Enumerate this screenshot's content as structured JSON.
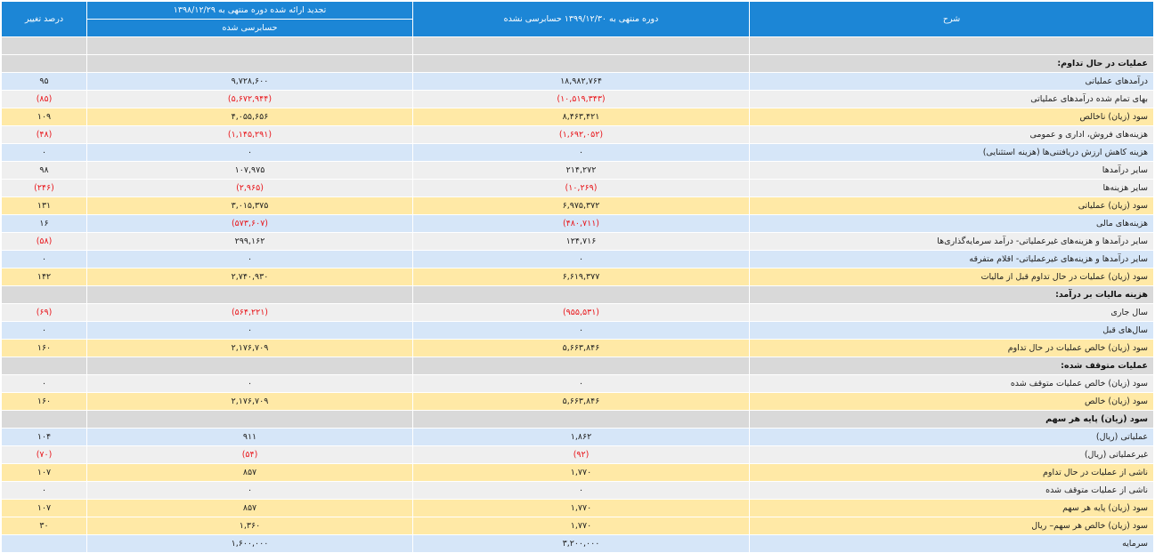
{
  "header": {
    "col_desc": "شرح",
    "col_current": "دوره منتهی به ۱۳۹۹/۱۲/۳۰ حسابرسی نشده",
    "col_previous": "تجدید ارائه شده دوره منتهی به ۱۳۹۸/۱۲/۲۹",
    "col_previous_sub": "حسابرسی شده",
    "col_pct": "درصد تغییر"
  },
  "rows": [
    {
      "type": "section",
      "desc": "",
      "cur": "",
      "prev": "",
      "pct": ""
    },
    {
      "type": "section",
      "desc": "عملیات در حال تداوم:",
      "cur": "",
      "prev": "",
      "pct": ""
    },
    {
      "type": "blue",
      "desc": "درآمدهای عملیاتی",
      "cur": "۱۸,۹۸۲,۷۶۴",
      "prev": "۹,۷۲۸,۶۰۰",
      "pct": "۹۵"
    },
    {
      "type": "gray",
      "desc": "بهای تمام شده درآمدهای عملیاتی",
      "cur": "(۱۰,۵۱۹,۳۴۳)",
      "prev": "(۵,۶۷۲,۹۴۴)",
      "pct": "(۸۵)"
    },
    {
      "type": "yellow",
      "desc": "سود (زیان) ناخالص",
      "cur": "۸,۴۶۳,۴۲۱",
      "prev": "۴,۰۵۵,۶۵۶",
      "pct": "۱۰۹"
    },
    {
      "type": "gray",
      "desc": "هزینه‌های فروش، اداری و عمومی",
      "cur": "(۱,۶۹۲,۰۵۲)",
      "prev": "(۱,۱۴۵,۲۹۱)",
      "pct": "(۴۸)"
    },
    {
      "type": "blue",
      "desc": "هزینه کاهش ارزش دریافتنی‌ها (هزینه استثنایی)",
      "cur": "۰",
      "prev": "۰",
      "pct": "۰"
    },
    {
      "type": "gray",
      "desc": "سایر درآمدها",
      "cur": "۲۱۴,۲۷۲",
      "prev": "۱۰۷,۹۷۵",
      "pct": "۹۸"
    },
    {
      "type": "gray",
      "desc": "سایر هزینه‌ها",
      "cur": "(۱۰,۲۶۹)",
      "prev": "(۲,۹۶۵)",
      "pct": "(۲۴۶)"
    },
    {
      "type": "yellow",
      "desc": "سود (زیان) عملیاتی",
      "cur": "۶,۹۷۵,۳۷۲",
      "prev": "۳,۰۱۵,۳۷۵",
      "pct": "۱۳۱"
    },
    {
      "type": "blue",
      "desc": "هزینه‌های مالی",
      "cur": "(۴۸۰,۷۱۱)",
      "prev": "(۵۷۳,۶۰۷)",
      "pct": "۱۶"
    },
    {
      "type": "gray",
      "desc": "سایر درآمدها و هزینه‌های غیرعملیاتی- درآمد سرمایه‌گذاری‌ها",
      "cur": "۱۲۴,۷۱۶",
      "prev": "۲۹۹,۱۶۲",
      "pct": "(۵۸)"
    },
    {
      "type": "blue",
      "desc": "سایر درآمدها و هزینه‌های غیرعملیاتی- اقلام متفرقه",
      "cur": "۰",
      "prev": "۰",
      "pct": "۰"
    },
    {
      "type": "yellow",
      "desc": "سود (زیان) عملیات در حال تداوم قبل از مالیات",
      "cur": "۶,۶۱۹,۳۷۷",
      "prev": "۲,۷۴۰,۹۳۰",
      "pct": "۱۴۲"
    },
    {
      "type": "section",
      "desc": "هزینه مالیات بر درآمد:",
      "cur": "",
      "prev": "",
      "pct": ""
    },
    {
      "type": "gray",
      "desc": "سال جاری",
      "cur": "(۹۵۵,۵۳۱)",
      "prev": "(۵۶۴,۲۲۱)",
      "pct": "(۶۹)"
    },
    {
      "type": "blue",
      "desc": "سال‌های قبل",
      "cur": "۰",
      "prev": "۰",
      "pct": "۰"
    },
    {
      "type": "yellow",
      "desc": "سود (زیان) خالص عملیات در حال تداوم",
      "cur": "۵,۶۶۳,۸۴۶",
      "prev": "۲,۱۷۶,۷۰۹",
      "pct": "۱۶۰"
    },
    {
      "type": "section",
      "desc": "عملیات متوقف شده:",
      "cur": "",
      "prev": "",
      "pct": ""
    },
    {
      "type": "gray",
      "desc": "سود (زیان) خالص عملیات متوقف شده",
      "cur": "۰",
      "prev": "۰",
      "pct": "۰"
    },
    {
      "type": "yellow",
      "desc": "سود (زیان) خالص",
      "cur": "۵,۶۶۳,۸۴۶",
      "prev": "۲,۱۷۶,۷۰۹",
      "pct": "۱۶۰"
    },
    {
      "type": "section",
      "desc": "سود (زیان) پایه هر سهم",
      "cur": "",
      "prev": "",
      "pct": ""
    },
    {
      "type": "blue",
      "desc": "عملیاتی (ریال)",
      "cur": "۱,۸۶۲",
      "prev": "۹۱۱",
      "pct": "۱۰۴"
    },
    {
      "type": "gray",
      "desc": "غیرعملیاتی (ریال)",
      "cur": "(۹۲)",
      "prev": "(۵۴)",
      "pct": "(۷۰)"
    },
    {
      "type": "yellow",
      "desc": "ناشی از عملیات در حال تداوم",
      "cur": "۱,۷۷۰",
      "prev": "۸۵۷",
      "pct": "۱۰۷"
    },
    {
      "type": "gray",
      "desc": "ناشی از عملیات متوقف شده",
      "cur": "۰",
      "prev": "۰",
      "pct": "۰"
    },
    {
      "type": "yellow",
      "desc": "سود (زیان) پایه هر سهم",
      "cur": "۱,۷۷۰",
      "prev": "۸۵۷",
      "pct": "۱۰۷"
    },
    {
      "type": "yellow",
      "desc": "سود (زیان) خالص هر سهم– ریال",
      "cur": "۱,۷۷۰",
      "prev": "۱,۳۶۰",
      "pct": "۳۰"
    },
    {
      "type": "blue",
      "desc": "سرمایه",
      "cur": "۳,۲۰۰,۰۰۰",
      "prev": "۱,۶۰۰,۰۰۰",
      "pct": ""
    }
  ]
}
